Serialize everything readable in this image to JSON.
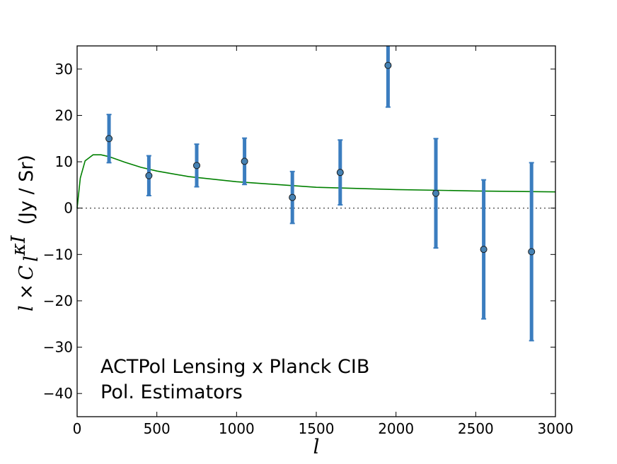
{
  "chart_data": {
    "type": "scatter",
    "title": "",
    "xlabel": "l",
    "ylabel": {
      "prefix": "l",
      "times": "×",
      "symbol": "C",
      "subscript": "l",
      "superscript": "κI",
      "units": "(Jy / Sr)"
    },
    "xlim": [
      0,
      3000
    ],
    "ylim": [
      -45,
      35
    ],
    "x_ticks": [
      0,
      500,
      1000,
      1500,
      2000,
      2500,
      3000
    ],
    "x_tick_labels": [
      "0",
      "500",
      "1000",
      "1500",
      "2000",
      "2500",
      "3000"
    ],
    "y_ticks": [
      30,
      20,
      10,
      0,
      -10,
      -20,
      -30,
      -40
    ],
    "y_tick_labels": [
      "30",
      "20",
      "10",
      "0",
      "−10",
      "−20",
      "−30",
      "−40"
    ],
    "grid": false,
    "annotations": [
      "ACTPol Lensing x Planck CIB",
      "Pol. Estimators"
    ],
    "series": [
      {
        "name": "measurements",
        "kind": "errorbar",
        "color": "#3b7dbf",
        "marker_color": "#4682b4",
        "x": [
          200,
          450,
          750,
          1050,
          1350,
          1650,
          1950,
          2250,
          2550,
          2850
        ],
        "y": [
          15.0,
          7.0,
          9.2,
          10.1,
          2.3,
          7.7,
          30.8,
          3.2,
          -8.9,
          -9.4
        ],
        "err": [
          5.2,
          4.3,
          4.6,
          5.0,
          5.6,
          7.0,
          9.0,
          11.8,
          15.0,
          19.2
        ]
      },
      {
        "name": "model",
        "kind": "line",
        "color": "#008000",
        "x": [
          0,
          20,
          50,
          100,
          150,
          200,
          300,
          400,
          500,
          700,
          1000,
          1500,
          2000,
          2500,
          3000
        ],
        "y": [
          0,
          6.5,
          10.2,
          11.5,
          11.5,
          11.1,
          9.9,
          8.8,
          8.0,
          6.8,
          5.7,
          4.5,
          4.0,
          3.7,
          3.5
        ]
      },
      {
        "name": "zero",
        "kind": "hline",
        "color": "#555555",
        "y": 0
      }
    ]
  }
}
